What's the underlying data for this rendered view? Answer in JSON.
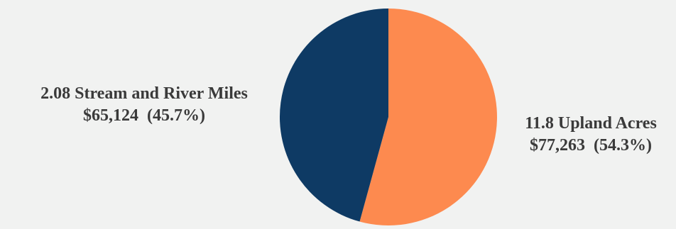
{
  "chart_data": {
    "type": "pie",
    "slices": [
      {
        "label": "2.08 Stream and River Miles",
        "amount": "$65,124",
        "percent_label": "(45.7%)",
        "value": 65124,
        "percent": 45.7,
        "color": "#0e3a64"
      },
      {
        "label": "11.8 Upland Acres",
        "amount": "$77,263",
        "percent_label": "(54.3%)",
        "value": 77263,
        "percent": 54.3,
        "color": "#fd8a4f"
      }
    ],
    "start_angle_deg": 0,
    "direction": "clockwise",
    "legend": "none"
  }
}
